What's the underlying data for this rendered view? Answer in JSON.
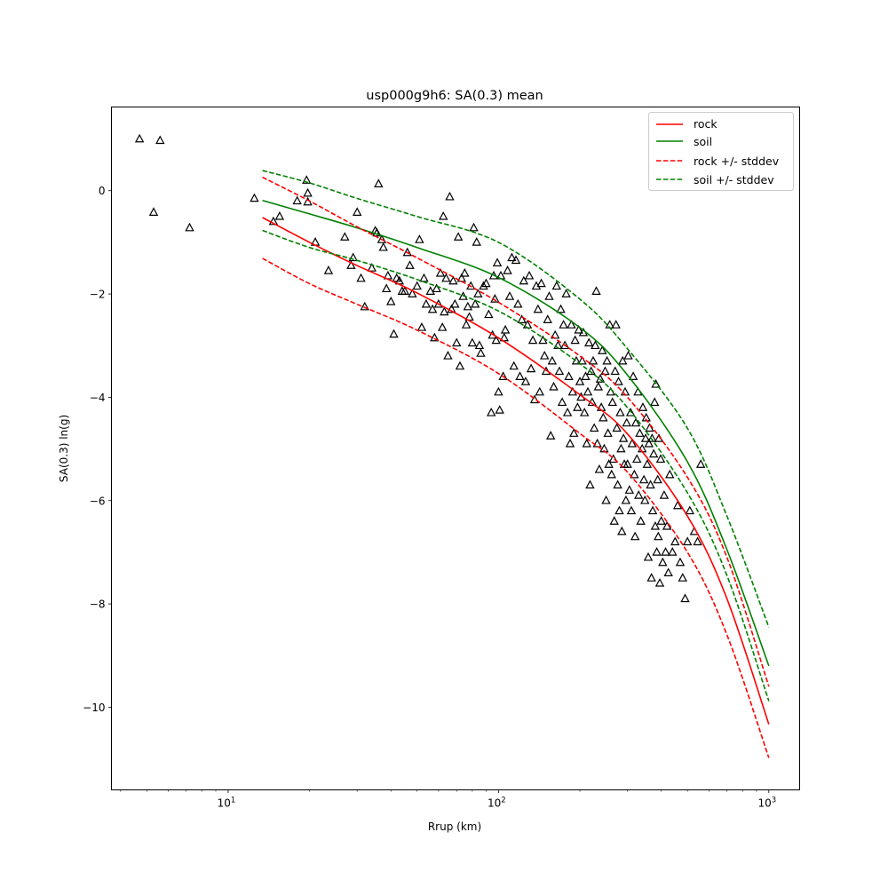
{
  "chart_data": {
    "type": "scatter",
    "title": "usp000g9h6: SA(0.3) mean",
    "xlabel": "Rrup (km)",
    "ylabel": "SA(0.3) ln(g)",
    "xscale": "log",
    "xlim": [
      3.7,
      1300
    ],
    "ylim": [
      -11.6,
      1.62
    ],
    "xticks": [
      {
        "value": 10,
        "label": "10",
        "exp": "1"
      },
      {
        "value": 100,
        "label": "10",
        "exp": "2"
      },
      {
        "value": 1000,
        "label": "10",
        "exp": "3"
      }
    ],
    "yticks": [
      0,
      -2,
      -4,
      -6,
      -8,
      -10
    ],
    "ytick_labels": [
      "0",
      "−2",
      "−4",
      "−6",
      "−8",
      "−10"
    ],
    "grid": false,
    "legend_position": "upper right",
    "legend": [
      {
        "label": "rock",
        "color": "#ff0000",
        "style": "solid"
      },
      {
        "label": "soil",
        "color": "#008000",
        "style": "solid"
      },
      {
        "label": "rock +/- stddev",
        "color": "#ff0000",
        "style": "dashed"
      },
      {
        "label": "soil +/- stddev",
        "color": "#008000",
        "style": "dashed"
      }
    ],
    "series": [
      {
        "name": "rock",
        "color": "#ff0000",
        "style": "solid",
        "points": [
          [
            13.4,
            -0.52
          ],
          [
            20,
            -1.0
          ],
          [
            30,
            -1.45
          ],
          [
            50,
            -1.98
          ],
          [
            100,
            -2.85
          ],
          [
            200,
            -3.95
          ],
          [
            300,
            -4.71
          ],
          [
            500,
            -6.3
          ],
          [
            700,
            -7.9
          ],
          [
            1000,
            -10.33
          ]
        ]
      },
      {
        "name": "soil",
        "color": "#008000",
        "style": "solid",
        "points": [
          [
            13.4,
            -0.19
          ],
          [
            20,
            -0.45
          ],
          [
            30,
            -0.72
          ],
          [
            50,
            -1.1
          ],
          [
            100,
            -1.68
          ],
          [
            200,
            -2.65
          ],
          [
            300,
            -3.57
          ],
          [
            500,
            -5.25
          ],
          [
            700,
            -6.95
          ],
          [
            1000,
            -9.2
          ]
        ]
      },
      {
        "name": "rock + stddev",
        "color": "#ff0000",
        "style": "dashed",
        "points": [
          [
            13.4,
            0.26
          ],
          [
            20,
            -0.2
          ],
          [
            30,
            -0.7
          ],
          [
            50,
            -1.3
          ],
          [
            100,
            -2.16
          ],
          [
            200,
            -3.2
          ],
          [
            300,
            -4.0
          ],
          [
            500,
            -5.55
          ],
          [
            700,
            -7.1
          ],
          [
            1000,
            -9.6
          ]
        ]
      },
      {
        "name": "rock - stddev",
        "color": "#ff0000",
        "style": "dashed",
        "points": [
          [
            13.4,
            -1.31
          ],
          [
            20,
            -1.8
          ],
          [
            30,
            -2.2
          ],
          [
            50,
            -2.7
          ],
          [
            100,
            -3.54
          ],
          [
            200,
            -4.7
          ],
          [
            300,
            -5.45
          ],
          [
            500,
            -7.0
          ],
          [
            700,
            -8.6
          ],
          [
            1000,
            -10.98
          ]
        ]
      },
      {
        "name": "soil + stddev",
        "color": "#008000",
        "style": "dashed",
        "points": [
          [
            13.4,
            0.39
          ],
          [
            20,
            0.15
          ],
          [
            30,
            -0.15
          ],
          [
            50,
            -0.5
          ],
          [
            100,
            -1.0
          ],
          [
            200,
            -2.1
          ],
          [
            300,
            -3.06
          ],
          [
            500,
            -4.6
          ],
          [
            700,
            -6.3
          ],
          [
            1000,
            -8.45
          ]
        ]
      },
      {
        "name": "soil - stddev",
        "color": "#008000",
        "style": "dashed",
        "points": [
          [
            13.4,
            -0.77
          ],
          [
            20,
            -1.1
          ],
          [
            30,
            -1.35
          ],
          [
            50,
            -1.72
          ],
          [
            100,
            -2.33
          ],
          [
            200,
            -3.35
          ],
          [
            300,
            -4.2
          ],
          [
            500,
            -5.85
          ],
          [
            700,
            -7.45
          ],
          [
            1000,
            -9.88
          ]
        ]
      }
    ],
    "observations": {
      "marker": "triangle",
      "color": "#000000",
      "points": [
        [
          4.7,
          1.0
        ],
        [
          5.6,
          0.97
        ],
        [
          5.3,
          -0.42
        ],
        [
          7.2,
          -0.72
        ],
        [
          12.5,
          -0.15
        ],
        [
          14.7,
          -0.6
        ],
        [
          15.5,
          -0.5
        ],
        [
          18,
          -0.2
        ],
        [
          19.5,
          0.2
        ],
        [
          19.7,
          -0.05
        ],
        [
          19.7,
          -0.22
        ],
        [
          21,
          -1.0
        ],
        [
          23.5,
          -1.55
        ],
        [
          27,
          -0.9
        ],
        [
          28.5,
          -1.45
        ],
        [
          29,
          -1.3
        ],
        [
          30,
          -0.42
        ],
        [
          31,
          -1.7
        ],
        [
          32,
          -2.25
        ],
        [
          34,
          -1.5
        ],
        [
          35,
          -0.78
        ],
        [
          35.5,
          -0.82
        ],
        [
          36,
          0.13
        ],
        [
          37,
          -0.95
        ],
        [
          37.5,
          -1.1
        ],
        [
          38.5,
          -1.9
        ],
        [
          39,
          -1.65
        ],
        [
          40,
          -2.15
        ],
        [
          41,
          -2.78
        ],
        [
          42,
          -1.7
        ],
        [
          43,
          -1.75
        ],
        [
          44,
          -1.95
        ],
        [
          45,
          -1.95
        ],
        [
          46,
          -1.2
        ],
        [
          47,
          -1.45
        ],
        [
          48,
          -2.0
        ],
        [
          50,
          -1.85
        ],
        [
          51,
          -0.95
        ],
        [
          52,
          -2.65
        ],
        [
          53,
          -1.7
        ],
        [
          54,
          -2.2
        ],
        [
          56,
          -1.95
        ],
        [
          57,
          -2.3
        ],
        [
          58,
          -2.85
        ],
        [
          59,
          -1.9
        ],
        [
          60,
          -2.2
        ],
        [
          61,
          -1.6
        ],
        [
          62,
          -2.65
        ],
        [
          62.5,
          -0.5
        ],
        [
          63,
          -2.35
        ],
        [
          64,
          -1.7
        ],
        [
          65,
          -3.2
        ],
        [
          66,
          -0.12
        ],
        [
          67,
          -2.3
        ],
        [
          68,
          -1.75
        ],
        [
          69,
          -2.2
        ],
        [
          70,
          -2.95
        ],
        [
          71,
          -0.9
        ],
        [
          72,
          -3.4
        ],
        [
          73,
          -1.7
        ],
        [
          74,
          -2.05
        ],
        [
          75,
          -1.6
        ],
        [
          76,
          -2.6
        ],
        [
          77,
          -2.25
        ],
        [
          78,
          -2.45
        ],
        [
          79,
          -1.85
        ],
        [
          80,
          -2.95
        ],
        [
          81,
          -0.72
        ],
        [
          82,
          -2.2
        ],
        [
          83,
          -1.0
        ],
        [
          84,
          -2.0
        ],
        [
          85,
          -3.0
        ],
        [
          86,
          -3.15
        ],
        [
          88,
          -1.85
        ],
        [
          90,
          -1.8
        ],
        [
          92,
          -2.4
        ],
        [
          94,
          -4.3
        ],
        [
          95,
          -2.8
        ],
        [
          96,
          -1.65
        ],
        [
          97,
          -2.1
        ],
        [
          98,
          -2.9
        ],
        [
          99,
          -1.4
        ],
        [
          100,
          -3.9
        ],
        [
          101,
          -4.25
        ],
        [
          102,
          -1.65
        ],
        [
          104,
          -3.6
        ],
        [
          105,
          -2.85
        ],
        [
          106,
          -2.7
        ],
        [
          108,
          -1.55
        ],
        [
          110,
          -2.05
        ],
        [
          112,
          -1.3
        ],
        [
          114,
          -3.4
        ],
        [
          116,
          -1.35
        ],
        [
          118,
          -2.2
        ],
        [
          120,
          -3.6
        ],
        [
          122,
          -2.5
        ],
        [
          124,
          -1.75
        ],
        [
          126,
          -3.7
        ],
        [
          128,
          -2.6
        ],
        [
          130,
          -1.65
        ],
        [
          132,
          -3.45
        ],
        [
          134,
          -2.9
        ],
        [
          136,
          -4.05
        ],
        [
          138,
          -1.85
        ],
        [
          140,
          -2.3
        ],
        [
          142,
          -3.9
        ],
        [
          144,
          -1.8
        ],
        [
          146,
          -2.9
        ],
        [
          148,
          -3.2
        ],
        [
          150,
          -3.5
        ],
        [
          152,
          -2.5
        ],
        [
          154,
          -2.05
        ],
        [
          156,
          -4.75
        ],
        [
          158,
          -3.3
        ],
        [
          160,
          -3.8
        ],
        [
          162,
          -2.8
        ],
        [
          164,
          -1.85
        ],
        [
          166,
          -3.0
        ],
        [
          168,
          -3.5
        ],
        [
          170,
          -2.3
        ],
        [
          172,
          -4.1
        ],
        [
          174,
          -2.6
        ],
        [
          176,
          -3.0
        ],
        [
          178,
          -2.0
        ],
        [
          180,
          -4.3
        ],
        [
          182,
          -3.6
        ],
        [
          184,
          -4.9
        ],
        [
          186,
          -2.6
        ],
        [
          188,
          -3.9
        ],
        [
          190,
          -4.7
        ],
        [
          192,
          -2.9
        ],
        [
          194,
          -3.3
        ],
        [
          196,
          -4.2
        ],
        [
          198,
          -2.7
        ],
        [
          200,
          -3.7
        ],
        [
          202,
          -4.0
        ],
        [
          204,
          -3.3
        ],
        [
          206,
          -2.75
        ],
        [
          208,
          -4.3
        ],
        [
          210,
          -3.6
        ],
        [
          212,
          -4.9
        ],
        [
          214,
          -3.9
        ],
        [
          216,
          -2.95
        ],
        [
          218,
          -5.7
        ],
        [
          220,
          -3.5
        ],
        [
          222,
          -4.1
        ],
        [
          224,
          -3.3
        ],
        [
          226,
          -4.6
        ],
        [
          228,
          -3.0
        ],
        [
          230,
          -1.95
        ],
        [
          232,
          -4.9
        ],
        [
          234,
          -3.8
        ],
        [
          236,
          -5.4
        ],
        [
          238,
          -3.65
        ],
        [
          240,
          -4.2
        ],
        [
          242,
          -3.1
        ],
        [
          244,
          -4.4
        ],
        [
          246,
          -5.0
        ],
        [
          248,
          -3.5
        ],
        [
          250,
          -6.0
        ],
        [
          252,
          -3.3
        ],
        [
          254,
          -4.7
        ],
        [
          256,
          -5.3
        ],
        [
          258,
          -2.6
        ],
        [
          260,
          -3.9
        ],
        [
          262,
          -5.5
        ],
        [
          264,
          -4.1
        ],
        [
          266,
          -5.2
        ],
        [
          268,
          -6.4
        ],
        [
          270,
          -3.5
        ],
        [
          272,
          -2.6
        ],
        [
          274,
          -4.6
        ],
        [
          276,
          -5.7
        ],
        [
          278,
          -3.7
        ],
        [
          280,
          -6.2
        ],
        [
          282,
          -4.3
        ],
        [
          284,
          -5.0
        ],
        [
          286,
          -6.6
        ],
        [
          288,
          -3.3
        ],
        [
          290,
          -4.8
        ],
        [
          292,
          -5.3
        ],
        [
          294,
          -3.9
        ],
        [
          296,
          -6.0
        ],
        [
          298,
          -4.5
        ],
        [
          300,
          -5.3
        ],
        [
          302,
          -3.2
        ],
        [
          305,
          -5.8
        ],
        [
          308,
          -4.3
        ],
        [
          310,
          -6.2
        ],
        [
          312,
          -4.9
        ],
        [
          315,
          -3.6
        ],
        [
          318,
          -5.5
        ],
        [
          320,
          -6.7
        ],
        [
          322,
          -4.5
        ],
        [
          325,
          -5.2
        ],
        [
          328,
          -3.9
        ],
        [
          330,
          -5.9
        ],
        [
          333,
          -4.7
        ],
        [
          336,
          -6.4
        ],
        [
          340,
          -5.0
        ],
        [
          342,
          -4.2
        ],
        [
          345,
          -5.6
        ],
        [
          348,
          -6.0
        ],
        [
          350,
          -4.8
        ],
        [
          352,
          -4.4
        ],
        [
          355,
          -5.3
        ],
        [
          358,
          -7.1
        ],
        [
          360,
          -4.9
        ],
        [
          362,
          -4.6
        ],
        [
          365,
          -5.7
        ],
        [
          368,
          -7.5
        ],
        [
          370,
          -4.8
        ],
        [
          372,
          -6.2
        ],
        [
          375,
          -5.1
        ],
        [
          378,
          -4.1
        ],
        [
          380,
          -6.5
        ],
        [
          382,
          -3.75
        ],
        [
          385,
          -7.0
        ],
        [
          388,
          -5.6
        ],
        [
          390,
          -6.7
        ],
        [
          392,
          -4.8
        ],
        [
          395,
          -7.6
        ],
        [
          398,
          -5.2
        ],
        [
          400,
          -6.4
        ],
        [
          405,
          -7.2
        ],
        [
          410,
          -5.9
        ],
        [
          415,
          -7.0
        ],
        [
          420,
          -6.5
        ],
        [
          425,
          -7.4
        ],
        [
          430,
          -5.5
        ],
        [
          440,
          -7.0
        ],
        [
          450,
          -6.8
        ],
        [
          460,
          -6.1
        ],
        [
          470,
          -7.2
        ],
        [
          480,
          -7.5
        ],
        [
          490,
          -7.9
        ],
        [
          500,
          -6.8
        ],
        [
          510,
          -6.2
        ],
        [
          530,
          -6.6
        ],
        [
          545,
          -6.8
        ],
        [
          560,
          -5.3
        ]
      ]
    }
  }
}
